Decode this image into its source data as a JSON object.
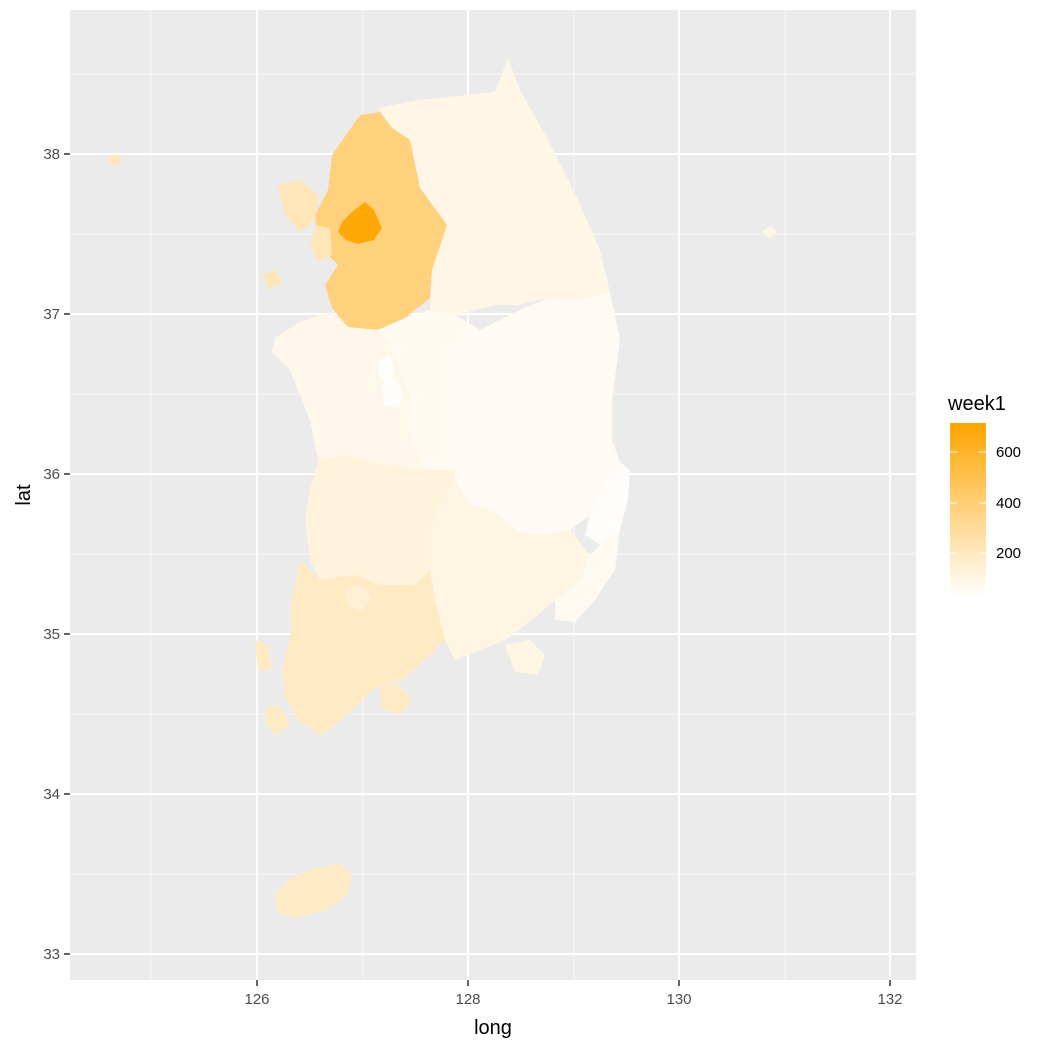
{
  "chart_data": {
    "type": "choropleth-map",
    "xlabel": "long",
    "ylabel": "lat",
    "x_ticks": [
      "126",
      "128",
      "130",
      "132"
    ],
    "y_ticks": [
      "33",
      "34",
      "35",
      "36",
      "37",
      "38"
    ],
    "xlim": [
      124.2,
      132.2
    ],
    "ylim": [
      32.85,
      38.6
    ],
    "grid": true,
    "legend": {
      "title": "week1",
      "placement": "right",
      "ticks": [
        "200",
        "400",
        "600"
      ],
      "range": [
        0,
        720
      ],
      "low_color": "#ffffff",
      "high_color": "#ffa500"
    },
    "regions": [
      {
        "id": "seoul",
        "value": 700
      },
      {
        "id": "gyeonggi",
        "value": 370
      },
      {
        "id": "incheon",
        "value": 200
      },
      {
        "id": "gangwon",
        "value": 70
      },
      {
        "id": "chungbuk",
        "value": 35
      },
      {
        "id": "chungnam",
        "value": 60
      },
      {
        "id": "sejong",
        "value": 15
      },
      {
        "id": "daejeon",
        "value": 5
      },
      {
        "id": "gyeongbuk",
        "value": 30
      },
      {
        "id": "daegu",
        "value": 30
      },
      {
        "id": "jeonbuk",
        "value": 100
      },
      {
        "id": "jeonnam",
        "value": 170
      },
      {
        "id": "gwangju",
        "value": 120
      },
      {
        "id": "gyeongnam",
        "value": 80
      },
      {
        "id": "ulsan",
        "value": 15
      },
      {
        "id": "busan",
        "value": 40
      },
      {
        "id": "jeju",
        "value": 160
      },
      {
        "id": "ulleungdo",
        "value": 70
      },
      {
        "id": "baengnyeongdo",
        "value": 200
      }
    ]
  }
}
